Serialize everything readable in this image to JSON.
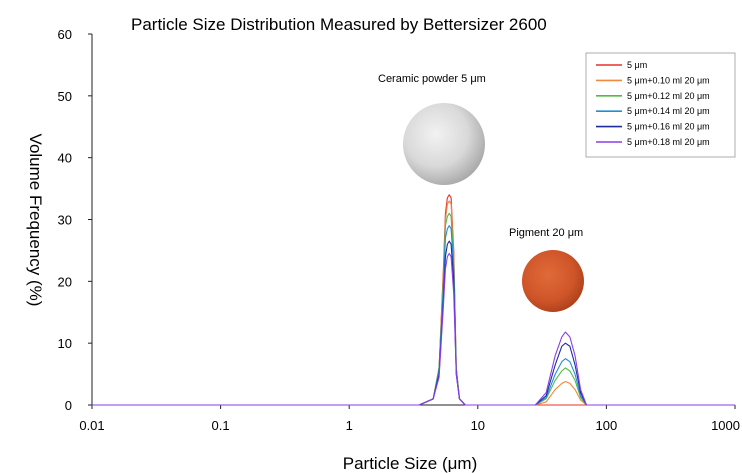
{
  "chart_data": {
    "type": "line",
    "title": "Particle Size Distribution Measured by Bettersizer 2600",
    "xlabel": "Particle Size (μm)",
    "ylabel": "Volume Frequency (%)",
    "x_scale": "log",
    "xlim": [
      0.01,
      1000
    ],
    "ylim": [
      0,
      60
    ],
    "x_ticks": [
      "0.01",
      "0.1",
      "1",
      "10",
      "100",
      "1000"
    ],
    "y_ticks": [
      "0",
      "10",
      "20",
      "30",
      "40",
      "50",
      "60"
    ],
    "grid": false,
    "legend_position": "top-right",
    "annotations": [
      "Ceramic powder 5 μm",
      "Pigment 20 μm"
    ],
    "series": [
      {
        "name": "5 μm",
        "color": "#e8302a",
        "points": [
          [
            0.01,
            0
          ],
          [
            3.5,
            0
          ],
          [
            4.5,
            1
          ],
          [
            5.0,
            6
          ],
          [
            5.4,
            22
          ],
          [
            5.6,
            31
          ],
          [
            5.8,
            33.5
          ],
          [
            6.0,
            34
          ],
          [
            6.2,
            33.5
          ],
          [
            6.5,
            25
          ],
          [
            6.8,
            6
          ],
          [
            7.2,
            1
          ],
          [
            8,
            0
          ],
          [
            1000,
            0
          ]
        ]
      },
      {
        "name": "5 μm+0.10 ml 20 μm",
        "color": "#f0883e",
        "points": [
          [
            0.01,
            0
          ],
          [
            3.5,
            0
          ],
          [
            4.5,
            1
          ],
          [
            5.0,
            6
          ],
          [
            5.4,
            21
          ],
          [
            5.6,
            30
          ],
          [
            5.8,
            32.5
          ],
          [
            6.0,
            33
          ],
          [
            6.2,
            32.5
          ],
          [
            6.5,
            24
          ],
          [
            6.8,
            6
          ],
          [
            7.2,
            1
          ],
          [
            8,
            0
          ],
          [
            28,
            0
          ],
          [
            34,
            0.5
          ],
          [
            40,
            2.5
          ],
          [
            45,
            3.5
          ],
          [
            48,
            3.8
          ],
          [
            52,
            3.5
          ],
          [
            57,
            2.5
          ],
          [
            63,
            0.8
          ],
          [
            70,
            0
          ],
          [
            1000,
            0
          ]
        ]
      },
      {
        "name": "5 μm+0.12 ml 20 μm",
        "color": "#55b84a",
        "points": [
          [
            0.01,
            0
          ],
          [
            3.5,
            0
          ],
          [
            4.5,
            1
          ],
          [
            5.0,
            6
          ],
          [
            5.4,
            20
          ],
          [
            5.6,
            29
          ],
          [
            5.8,
            30.5
          ],
          [
            6.0,
            31
          ],
          [
            6.2,
            30.5
          ],
          [
            6.5,
            23
          ],
          [
            6.8,
            6
          ],
          [
            7.2,
            1
          ],
          [
            8,
            0
          ],
          [
            28,
            0
          ],
          [
            34,
            1
          ],
          [
            40,
            4
          ],
          [
            45,
            5.5
          ],
          [
            48,
            6
          ],
          [
            52,
            5.5
          ],
          [
            57,
            4
          ],
          [
            63,
            1.2
          ],
          [
            70,
            0
          ],
          [
            1000,
            0
          ]
        ]
      },
      {
        "name": "5 μm+0.14 ml 20 μm",
        "color": "#1f8fd8",
        "points": [
          [
            0.01,
            0
          ],
          [
            3.5,
            0
          ],
          [
            4.5,
            1
          ],
          [
            5.0,
            5.5
          ],
          [
            5.4,
            19
          ],
          [
            5.6,
            27
          ],
          [
            5.8,
            28.5
          ],
          [
            6.0,
            29
          ],
          [
            6.2,
            28.5
          ],
          [
            6.5,
            22
          ],
          [
            6.8,
            5.5
          ],
          [
            7.2,
            1
          ],
          [
            8,
            0
          ],
          [
            28,
            0
          ],
          [
            34,
            1.2
          ],
          [
            40,
            5
          ],
          [
            45,
            7
          ],
          [
            48,
            7.5
          ],
          [
            52,
            7
          ],
          [
            57,
            5
          ],
          [
            63,
            1.5
          ],
          [
            70,
            0
          ],
          [
            1000,
            0
          ]
        ]
      },
      {
        "name": "5 μm+0.16 ml 20 μm",
        "color": "#1e2d9c",
        "points": [
          [
            0.01,
            0
          ],
          [
            3.5,
            0
          ],
          [
            4.5,
            1
          ],
          [
            5.0,
            5
          ],
          [
            5.4,
            17
          ],
          [
            5.6,
            24
          ],
          [
            5.8,
            26
          ],
          [
            6.0,
            26.5
          ],
          [
            6.2,
            26
          ],
          [
            6.5,
            20
          ],
          [
            6.8,
            5
          ],
          [
            7.2,
            1
          ],
          [
            8,
            0
          ],
          [
            28,
            0
          ],
          [
            34,
            1.5
          ],
          [
            40,
            6.5
          ],
          [
            45,
            9.5
          ],
          [
            48,
            10
          ],
          [
            52,
            9.5
          ],
          [
            57,
            6.5
          ],
          [
            63,
            2
          ],
          [
            70,
            0
          ],
          [
            1000,
            0
          ]
        ]
      },
      {
        "name": "5 μm+0.18 ml 20 μm",
        "color": "#8a3ee8",
        "points": [
          [
            0.01,
            0
          ],
          [
            3.5,
            0
          ],
          [
            4.5,
            1
          ],
          [
            5.0,
            4.5
          ],
          [
            5.4,
            16
          ],
          [
            5.6,
            22
          ],
          [
            5.8,
            24
          ],
          [
            6.0,
            24.5
          ],
          [
            6.2,
            24
          ],
          [
            6.5,
            18
          ],
          [
            6.8,
            5
          ],
          [
            7.2,
            1
          ],
          [
            8,
            0
          ],
          [
            28,
            0
          ],
          [
            34,
            2
          ],
          [
            40,
            8
          ],
          [
            45,
            11
          ],
          [
            48,
            11.8
          ],
          [
            52,
            11
          ],
          [
            57,
            8
          ],
          [
            63,
            2.5
          ],
          [
            70,
            0
          ],
          [
            1000,
            0
          ]
        ]
      }
    ]
  }
}
